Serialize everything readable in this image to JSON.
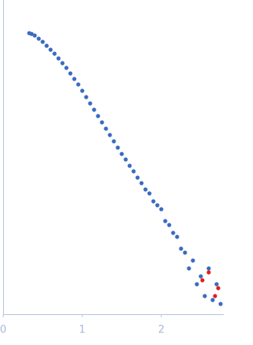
{
  "chart_data": {
    "type": "scatter",
    "xlim": [
      0,
      2.79
    ],
    "xticks": [
      0,
      1,
      2
    ],
    "ylim": [
      -3.68,
      0.3
    ],
    "series": [
      {
        "color": "#3a6bbf",
        "x": [
          0.33,
          0.36,
          0.4,
          0.45,
          0.5,
          0.55,
          0.6,
          0.65,
          0.7,
          0.75,
          0.8,
          0.85,
          0.9,
          0.95,
          1.0,
          1.05,
          1.1,
          1.15,
          1.2,
          1.25,
          1.3,
          1.35,
          1.4,
          1.45,
          1.5,
          1.55,
          1.6,
          1.65,
          1.7,
          1.75,
          1.8,
          1.85,
          1.9,
          1.95,
          2.0,
          2.05,
          2.1,
          2.15,
          2.2,
          2.25,
          2.3,
          2.35,
          2.4,
          2.45,
          2.5,
          2.55,
          2.6,
          2.65,
          2.7,
          2.75
        ],
        "y": [
          -0.12,
          -0.13,
          -0.15,
          -0.19,
          -0.23,
          -0.28,
          -0.33,
          -0.38,
          -0.44,
          -0.5,
          -0.56,
          -0.63,
          -0.7,
          -0.77,
          -0.85,
          -0.93,
          -1.01,
          -1.09,
          -1.17,
          -1.25,
          -1.33,
          -1.41,
          -1.49,
          -1.57,
          -1.65,
          -1.72,
          -1.8,
          -1.87,
          -1.95,
          -2.02,
          -2.1,
          -2.15,
          -2.25,
          -2.3,
          -2.35,
          -2.5,
          -2.55,
          -2.65,
          -2.7,
          -2.85,
          -2.9,
          -3.1,
          -3.0,
          -3.3,
          -3.2,
          -3.45,
          -3.1,
          -3.5,
          -3.3,
          -3.55
        ]
      },
      {
        "color": "#e02020",
        "x": [
          2.52,
          2.6,
          2.68,
          2.72
        ],
        "y": [
          -3.25,
          -3.15,
          -3.45,
          -3.35
        ]
      }
    ]
  }
}
